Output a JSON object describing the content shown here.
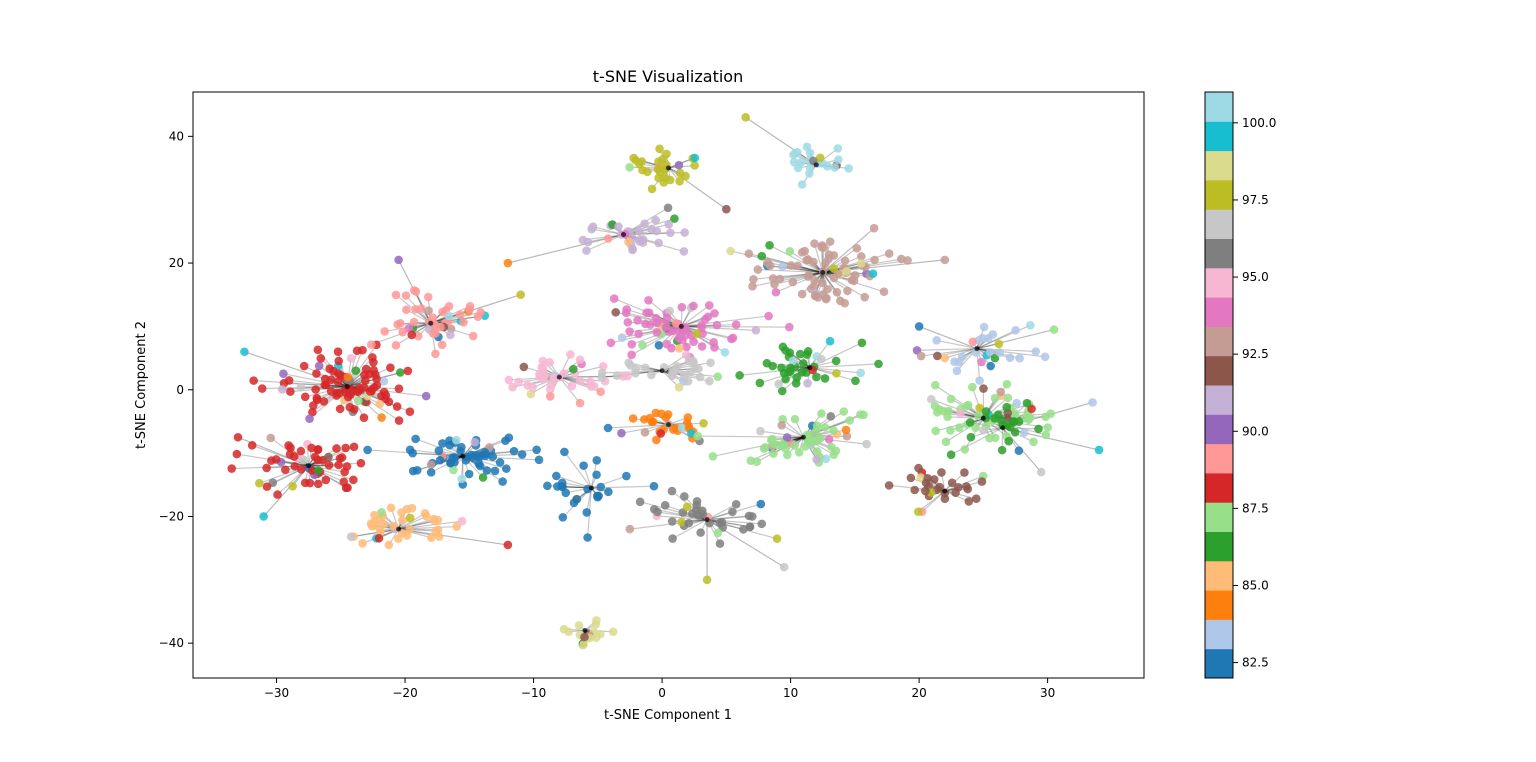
{
  "chart_data": {
    "type": "scatter",
    "title": "t-SNE Visualization",
    "xlabel": "t-SNE Component 1",
    "ylabel": "t-SNE Component 2",
    "xlim": [
      -36.5,
      37.5
    ],
    "ylim": [
      -45.5,
      47
    ],
    "x_ticks": [
      -30,
      -20,
      -10,
      0,
      10,
      20,
      30
    ],
    "y_ticks": [
      -40,
      -20,
      0,
      20,
      40
    ],
    "grid": false,
    "legend": "none",
    "colorbar": {
      "range": [
        82,
        101
      ],
      "tick_values": [
        82.5,
        85.0,
        87.5,
        90.0,
        92.5,
        95.0,
        97.5,
        100.0
      ],
      "tick_labels": [
        "82.5",
        "85.0",
        "87.5",
        "90.0",
        "92.5",
        "95.0",
        "97.5",
        "100.0"
      ],
      "colormap": "tab20",
      "colors": [
        "#1f77b4",
        "#aec7e8",
        "#ff7f0e",
        "#ffbb78",
        "#2ca02c",
        "#98df8a",
        "#d62728",
        "#ff9896",
        "#9467bd",
        "#c5b0d5",
        "#8c564b",
        "#c49c94",
        "#e377c2",
        "#f7b6d2",
        "#7f7f7f",
        "#c7c7c7",
        "#bcbd22",
        "#dbdb8d",
        "#17becf",
        "#9edae5"
      ]
    },
    "clusters": [
      {
        "center": [
          -24.5,
          0.5
        ],
        "color_index": 6,
        "count": 95,
        "spread": [
          3.5,
          3.5
        ],
        "max_x": -18
      },
      {
        "center": [
          -27.5,
          -12
        ],
        "color_index": 6,
        "count": 55,
        "spread": [
          2.8,
          3.2
        ]
      },
      {
        "center": [
          -15.5,
          -10.5
        ],
        "color_index": 0,
        "count": 60,
        "spread": [
          3.2,
          2.5
        ]
      },
      {
        "center": [
          -20.5,
          -22
        ],
        "color_index": 3,
        "count": 40,
        "spread": [
          2.8,
          2.8
        ]
      },
      {
        "center": [
          -18,
          10.5
        ],
        "color_index": 7,
        "count": 50,
        "spread": [
          3.2,
          3.0
        ]
      },
      {
        "center": [
          -8,
          2
        ],
        "color_index": 13,
        "count": 40,
        "spread": [
          3.0,
          3.0
        ]
      },
      {
        "center": [
          -5.5,
          -15.5
        ],
        "color_index": 0,
        "count": 25,
        "spread": [
          2.5,
          3.0
        ]
      },
      {
        "center": [
          -3,
          24.5
        ],
        "color_index": 9,
        "count": 35,
        "spread": [
          2.5,
          2.2
        ]
      },
      {
        "center": [
          0.5,
          35
        ],
        "color_index": 16,
        "count": 28,
        "spread": [
          2.0,
          2.0
        ]
      },
      {
        "center": [
          1.5,
          10
        ],
        "color_index": 12,
        "count": 70,
        "spread": [
          3.5,
          3.0
        ]
      },
      {
        "center": [
          0,
          3
        ],
        "color_index": 15,
        "count": 30,
        "spread": [
          3.0,
          2.0
        ]
      },
      {
        "center": [
          0.5,
          -5.5
        ],
        "color_index": 2,
        "count": 30,
        "spread": [
          2.8,
          2.2
        ]
      },
      {
        "center": [
          3.5,
          -20.5
        ],
        "color_index": 14,
        "count": 40,
        "spread": [
          3.0,
          2.5
        ]
      },
      {
        "center": [
          12.5,
          18.5
        ],
        "color_index": 11,
        "count": 80,
        "spread": [
          4.0,
          3.5
        ]
      },
      {
        "center": [
          11.5,
          3.5
        ],
        "color_index": 4,
        "count": 40,
        "spread": [
          3.5,
          3.0
        ]
      },
      {
        "center": [
          11,
          -7.5
        ],
        "color_index": 5,
        "count": 60,
        "spread": [
          3.5,
          2.8
        ]
      },
      {
        "center": [
          24.5,
          6.5
        ],
        "color_index": 1,
        "count": 30,
        "spread": [
          3.5,
          2.5
        ]
      },
      {
        "center": [
          25,
          -4.5
        ],
        "color_index": 5,
        "count": 55,
        "spread": [
          3.5,
          3.0
        ]
      },
      {
        "center": [
          26.5,
          -6
        ],
        "color_index": 4,
        "count": 25,
        "spread": [
          2.0,
          2.5
        ]
      },
      {
        "center": [
          22,
          -16
        ],
        "color_index": 10,
        "count": 30,
        "spread": [
          3.0,
          2.0
        ]
      },
      {
        "center": [
          12,
          35.5
        ],
        "color_index": 19,
        "count": 22,
        "spread": [
          2.0,
          1.6
        ]
      },
      {
        "center": [
          -6,
          -38
        ],
        "color_index": 17,
        "count": 18,
        "spread": [
          1.6,
          1.5
        ]
      }
    ],
    "outliers": [
      {
        "x": -32.5,
        "y": 6,
        "color_index": 18
      },
      {
        "x": -33,
        "y": -7.5,
        "color_index": 6
      },
      {
        "x": -31,
        "y": -20,
        "color_index": 18
      },
      {
        "x": -20.5,
        "y": 20.5,
        "color_index": 8
      },
      {
        "x": -12,
        "y": 20,
        "color_index": 2
      },
      {
        "x": -11,
        "y": 15,
        "color_index": 16
      },
      {
        "x": -12,
        "y": -24.5,
        "color_index": 6
      },
      {
        "x": 6.5,
        "y": 43,
        "color_index": 16
      },
      {
        "x": 5,
        "y": 28.5,
        "color_index": 10
      },
      {
        "x": 22,
        "y": 20.5,
        "color_index": 11
      },
      {
        "x": 34,
        "y": -9.5,
        "color_index": 18
      },
      {
        "x": 33.5,
        "y": -2,
        "color_index": 1
      },
      {
        "x": 29.5,
        "y": -13,
        "color_index": 15
      },
      {
        "x": 3.5,
        "y": -30,
        "color_index": 16
      },
      {
        "x": 9.5,
        "y": -28,
        "color_index": 15
      },
      {
        "x": 30.5,
        "y": 9.5,
        "color_index": 5
      },
      {
        "x": 20,
        "y": 10,
        "color_index": 0
      },
      {
        "x": 16.5,
        "y": 25.5,
        "color_index": 11
      }
    ]
  }
}
